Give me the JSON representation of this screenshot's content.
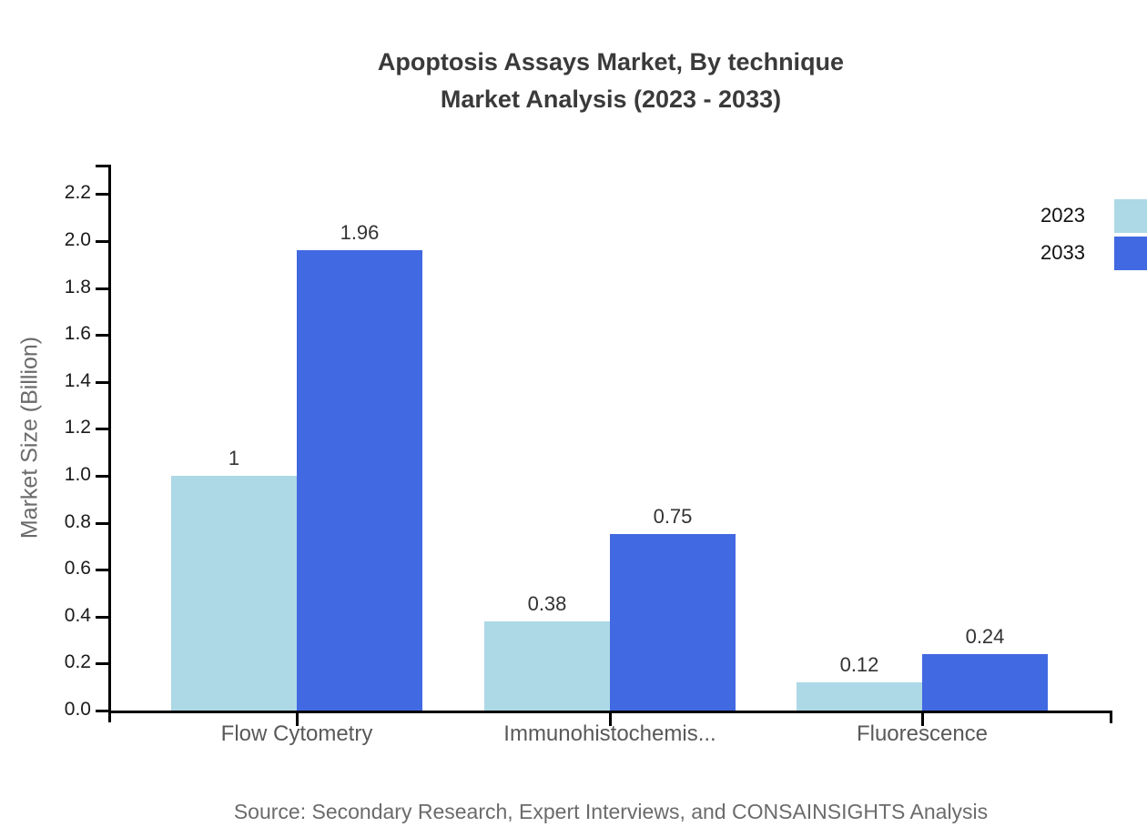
{
  "title": {
    "line1": "Apoptosis Assays Market, By technique",
    "line2": "Market Analysis (2023 - 2033)"
  },
  "y_axis": {
    "label": "Market Size (Billion)",
    "tick_values": [
      0.0,
      0.2,
      0.4,
      0.6,
      0.8,
      1.0,
      1.2,
      1.4,
      1.6,
      1.8,
      2.0,
      2.2
    ],
    "tick_labels": [
      "0.0",
      "0.2",
      "0.4",
      "0.6",
      "0.8",
      "1.0",
      "1.2",
      "1.4",
      "1.6",
      "1.8",
      "2.0",
      "2.2"
    ]
  },
  "legend": {
    "items": [
      {
        "label": "2023",
        "color": "#ADD8E6"
      },
      {
        "label": "2033",
        "color": "#4169E1"
      }
    ]
  },
  "source_note": "Source: Secondary Research, Expert Interviews, and CONSAINSIGHTS Analysis",
  "colors": {
    "axis": "#000000",
    "title_text": "#3a3a3a",
    "muted_text": "#6b6b6b",
    "tick_text": "#1a1a1a",
    "category_text": "#595959",
    "value_text": "#333333",
    "series_2023": "#ADD8E6",
    "series_2033": "#4169E1"
  },
  "chart_data": {
    "type": "bar",
    "title": "Apoptosis Assays Market, By technique Market Analysis (2023 - 2033)",
    "categories": [
      "Flow Cytometry",
      "Immunohistochemis...",
      "Fluorescence"
    ],
    "series": [
      {
        "name": "2023",
        "color": "#ADD8E6",
        "values": [
          1,
          0.38,
          0.12
        ],
        "value_labels": [
          "1",
          "0.38",
          "0.12"
        ]
      },
      {
        "name": "2033",
        "color": "#4169E1",
        "values": [
          1.96,
          0.75,
          0.24
        ],
        "value_labels": [
          "1.96",
          "0.75",
          "0.24"
        ]
      }
    ],
    "xlabel": "",
    "ylabel": "Market Size (Billion)",
    "ylim": [
      0,
      2.33
    ],
    "ytick_step": 0.2,
    "grid": false,
    "legend_position": "top-right",
    "bar_value_labels": true
  }
}
